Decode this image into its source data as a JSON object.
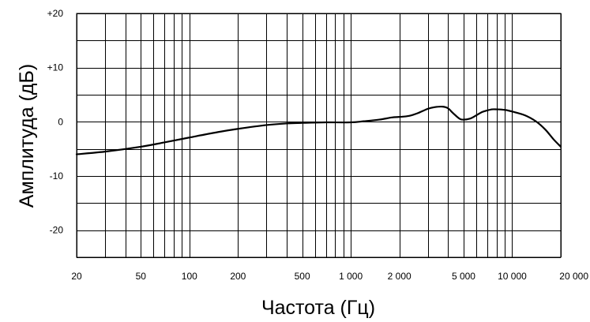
{
  "chart_data": {
    "type": "line",
    "title": "",
    "xlabel": "Частота (Гц)",
    "ylabel": "Амплитуда (дБ)",
    "x_scale": "log",
    "xlim": [
      20,
      20000
    ],
    "ylim": [
      -25,
      20
    ],
    "grid": true,
    "x_major_ticks": [
      20,
      30,
      40,
      50,
      60,
      70,
      80,
      90,
      100,
      200,
      300,
      400,
      500,
      600,
      700,
      800,
      900,
      1000,
      2000,
      3000,
      4000,
      5000,
      6000,
      7000,
      8000,
      9000,
      10000,
      20000
    ],
    "y_gridlines": [
      -25,
      -20,
      -15,
      -10,
      -5,
      0,
      5,
      10,
      15,
      20
    ],
    "x_tick_labels": [
      {
        "value": 20,
        "label": "20"
      },
      {
        "value": 50,
        "label": "50"
      },
      {
        "value": 100,
        "label": "100"
      },
      {
        "value": 200,
        "label": "200"
      },
      {
        "value": 500,
        "label": "500"
      },
      {
        "value": 1000,
        "label": "1 000"
      },
      {
        "value": 2000,
        "label": "2 000"
      },
      {
        "value": 5000,
        "label": "5 000"
      },
      {
        "value": 10000,
        "label": "10 000"
      },
      {
        "value": 20000,
        "label": "20 000"
      }
    ],
    "y_tick_labels": [
      {
        "value": 20,
        "label": "+20"
      },
      {
        "value": 10,
        "label": "+10"
      },
      {
        "value": 0,
        "label": "0"
      },
      {
        "value": -10,
        "label": "-10"
      },
      {
        "value": -20,
        "label": "-20"
      }
    ],
    "series": [
      {
        "x": [
          20,
          30,
          50,
          70,
          100,
          150,
          200,
          300,
          400,
          500,
          700,
          1000,
          1200,
          1500,
          1800,
          2000,
          2300,
          2600,
          3000,
          3300,
          3700,
          4000,
          4300,
          4700,
          5000,
          5500,
          6000,
          6500,
          7000,
          7500,
          8000,
          9000,
          10000,
          12000,
          14000,
          16000,
          18000,
          20000
        ],
        "y": [
          -6.0,
          -5.5,
          -4.6,
          -3.8,
          -2.9,
          -1.9,
          -1.3,
          -0.6,
          -0.3,
          -0.2,
          -0.1,
          -0.1,
          0.1,
          0.4,
          0.8,
          0.9,
          1.1,
          1.6,
          2.4,
          2.7,
          2.8,
          2.5,
          1.6,
          0.6,
          0.4,
          0.6,
          1.2,
          1.8,
          2.1,
          2.3,
          2.3,
          2.2,
          1.9,
          1.2,
          0.1,
          -1.4,
          -3.2,
          -4.6
        ]
      }
    ]
  }
}
